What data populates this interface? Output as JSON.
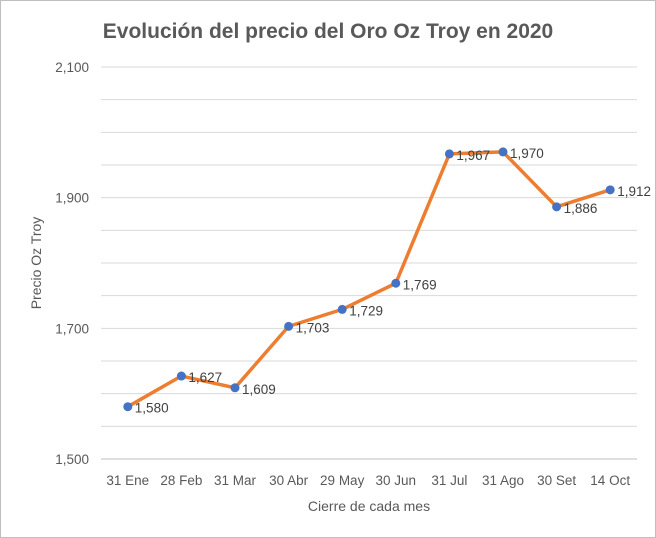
{
  "chart_data": {
    "type": "line",
    "title": "Evolución del precio del Oro Oz Troy en 2020",
    "xlabel": "Cierre de cada mes",
    "ylabel": "Precio Oz Troy",
    "categories": [
      "31 Ene",
      "28 Feb",
      "31 Mar",
      "30 Abr",
      "29 May",
      "30 Jun",
      "31 Jul",
      "31 Ago",
      "30 Set",
      "14 Oct"
    ],
    "series": [
      {
        "values": [
          1580,
          1627,
          1609,
          1703,
          1729,
          1769,
          1967,
          1970,
          1886,
          1912
        ],
        "data_labels": [
          "1,580",
          "1,627",
          "1,609",
          "1,703",
          "1,729",
          "1,769",
          "1,967",
          "1,970",
          "1,886",
          "1,912"
        ]
      }
    ],
    "ylim": [
      1500,
      2100
    ],
    "yticks": [
      1500,
      1700,
      1900,
      2100
    ],
    "ytick_labels": [
      "1,500",
      "1,700",
      "1,900",
      "2,100"
    ],
    "grid": true,
    "colors": {
      "line": "#ed7d31",
      "marker": "#4472c4"
    }
  }
}
